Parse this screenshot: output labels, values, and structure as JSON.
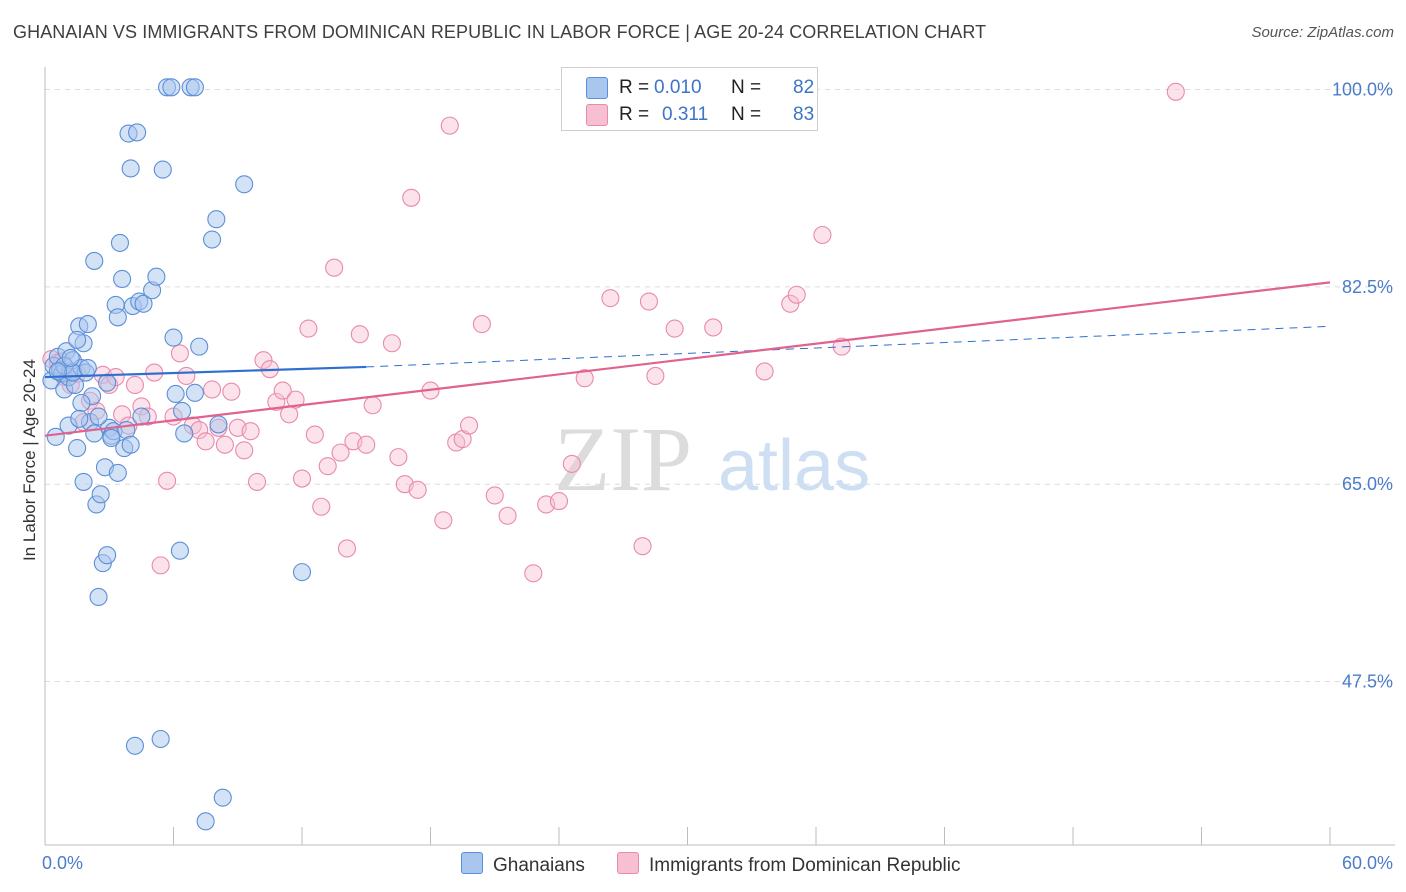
{
  "title": "GHANAIAN VS IMMIGRANTS FROM DOMINICAN REPUBLIC IN LABOR FORCE | AGE 20-24 CORRELATION CHART",
  "source": "Source: ZipAtlas.com",
  "watermark": {
    "zip": "ZIP",
    "atlas": "atlas"
  },
  "legend": {
    "r_label": "R =",
    "n_label": "N =",
    "rows": [
      {
        "r": "0.010",
        "n": "82"
      },
      {
        "r": "0.311",
        "n": "83"
      }
    ]
  },
  "bottom_legend": [
    "Ghanaians",
    "Immigrants from Dominican Republic"
  ],
  "colors": {
    "blue_fill": "#a9c6ee",
    "blue_stroke": "#5b8fd8",
    "blue_line": "#2f6fd0",
    "pink_fill": "#f6bfd2",
    "pink_stroke": "#e98aac",
    "pink_line": "#e0628f",
    "tick": "#4a7cc9",
    "grid": "#dcdcdc"
  },
  "chart_data": {
    "type": "scatter",
    "title": "GHANAIAN VS IMMIGRANTS FROM DOMINICAN REPUBLIC IN LABOR FORCE | AGE 20-24 CORRELATION CHART",
    "xlabel": "",
    "ylabel": "In Labor Force | Age 20-24",
    "xlim": [
      0,
      60
    ],
    "ylim": [
      33,
      102
    ],
    "x_tick_labels": [
      {
        "value": 0,
        "label": "0.0%"
      },
      {
        "value": 60,
        "label": "60.0%"
      }
    ],
    "y_ticks": [
      {
        "value": 100,
        "label": "100.0%"
      },
      {
        "value": 82.5,
        "label": "82.5%"
      },
      {
        "value": 65,
        "label": "65.0%"
      },
      {
        "value": 47.5,
        "label": "47.5%"
      }
    ],
    "series": [
      {
        "name": "Ghanaians",
        "R": 0.01,
        "N": 82,
        "trend": {
          "x": [
            0,
            15
          ],
          "y": [
            74.5,
            75.4
          ],
          "dashed_to": [
            60,
            79.0
          ]
        },
        "points": [
          [
            0.3,
            74.2
          ],
          [
            0.4,
            75.5
          ],
          [
            0.5,
            69.2
          ],
          [
            0.6,
            76.3
          ],
          [
            0.7,
            75.1
          ],
          [
            0.8,
            74.8
          ],
          [
            0.9,
            73.4
          ],
          [
            1.0,
            76.8
          ],
          [
            1.1,
            74.5
          ],
          [
            1.2,
            75.0
          ],
          [
            1.3,
            76.0
          ],
          [
            1.4,
            73.8
          ],
          [
            1.5,
            68.2
          ],
          [
            1.6,
            79.0
          ],
          [
            1.7,
            75.3
          ],
          [
            1.8,
            77.5
          ],
          [
            1.9,
            74.9
          ],
          [
            2.0,
            79.2
          ],
          [
            2.1,
            70.5
          ],
          [
            2.2,
            72.8
          ],
          [
            2.3,
            69.5
          ],
          [
            2.4,
            63.2
          ],
          [
            2.5,
            55.0
          ],
          [
            2.6,
            64.1
          ],
          [
            2.7,
            58.0
          ],
          [
            2.8,
            66.5
          ],
          [
            2.9,
            58.7
          ],
          [
            3.0,
            70.0
          ],
          [
            3.1,
            69.3
          ],
          [
            3.2,
            69.7
          ],
          [
            3.3,
            80.9
          ],
          [
            3.4,
            79.8
          ],
          [
            3.5,
            86.4
          ],
          [
            3.6,
            83.2
          ],
          [
            3.7,
            68.2
          ],
          [
            3.8,
            69.8
          ],
          [
            3.9,
            96.1
          ],
          [
            4.0,
            93.0
          ],
          [
            4.1,
            80.8
          ],
          [
            4.2,
            41.8
          ],
          [
            4.3,
            96.2
          ],
          [
            4.4,
            81.2
          ],
          [
            4.5,
            71.0
          ],
          [
            4.6,
            81.0
          ],
          [
            5.0,
            82.2
          ],
          [
            5.2,
            83.4
          ],
          [
            5.4,
            42.4
          ],
          [
            5.5,
            92.9
          ],
          [
            5.7,
            100.2
          ],
          [
            5.9,
            100.2
          ],
          [
            6.0,
            78.0
          ],
          [
            6.1,
            73.0
          ],
          [
            6.3,
            59.1
          ],
          [
            6.4,
            71.5
          ],
          [
            6.5,
            69.5
          ],
          [
            6.8,
            100.2
          ],
          [
            7.0,
            100.2
          ],
          [
            7.2,
            77.2
          ],
          [
            7.5,
            35.1
          ],
          [
            7.8,
            86.7
          ],
          [
            8.0,
            88.5
          ],
          [
            8.3,
            37.2
          ],
          [
            1.8,
            65.2
          ],
          [
            2.3,
            84.8
          ],
          [
            1.5,
            77.8
          ],
          [
            9.3,
            91.6
          ],
          [
            0.9,
            75.5
          ],
          [
            1.3,
            74.9
          ],
          [
            1.7,
            72.2
          ],
          [
            2.9,
            74.0
          ],
          [
            3.1,
            69.1
          ],
          [
            1.2,
            76.2
          ],
          [
            0.6,
            75.0
          ],
          [
            1.1,
            70.2
          ],
          [
            2.0,
            75.3
          ],
          [
            8.1,
            70.3
          ],
          [
            7.0,
            73.1
          ],
          [
            12.0,
            57.2
          ],
          [
            2.5,
            71.0
          ],
          [
            3.4,
            66.0
          ],
          [
            1.6,
            70.8
          ],
          [
            4.0,
            68.5
          ]
        ]
      },
      {
        "name": "Immigrants from Dominican Republic",
        "R": 0.311,
        "N": 83,
        "trend": {
          "x": [
            0,
            60
          ],
          "y": [
            69.3,
            82.9
          ]
        },
        "points": [
          [
            0.3,
            76.1
          ],
          [
            0.6,
            75.8
          ],
          [
            0.9,
            74.5
          ],
          [
            1.2,
            73.8
          ],
          [
            1.5,
            74.8
          ],
          [
            1.8,
            70.5
          ],
          [
            2.1,
            72.4
          ],
          [
            2.4,
            71.5
          ],
          [
            2.7,
            74.7
          ],
          [
            3.0,
            73.8
          ],
          [
            3.3,
            74.5
          ],
          [
            3.6,
            71.2
          ],
          [
            3.9,
            70.2
          ],
          [
            4.2,
            73.8
          ],
          [
            4.5,
            71.9
          ],
          [
            4.8,
            71.0
          ],
          [
            5.1,
            74.9
          ],
          [
            5.4,
            57.8
          ],
          [
            5.7,
            65.3
          ],
          [
            6.0,
            71.0
          ],
          [
            6.3,
            76.6
          ],
          [
            6.6,
            74.6
          ],
          [
            6.9,
            70.2
          ],
          [
            7.2,
            69.8
          ],
          [
            7.5,
            68.8
          ],
          [
            7.8,
            73.4
          ],
          [
            8.1,
            70.0
          ],
          [
            8.4,
            68.5
          ],
          [
            8.7,
            73.2
          ],
          [
            9.0,
            70.0
          ],
          [
            9.3,
            68.0
          ],
          [
            9.6,
            69.7
          ],
          [
            9.9,
            65.2
          ],
          [
            10.2,
            76.0
          ],
          [
            10.5,
            75.2
          ],
          [
            10.8,
            72.3
          ],
          [
            11.1,
            73.3
          ],
          [
            11.4,
            71.2
          ],
          [
            11.7,
            72.5
          ],
          [
            12.0,
            65.5
          ],
          [
            12.3,
            78.8
          ],
          [
            12.6,
            69.4
          ],
          [
            12.9,
            63.0
          ],
          [
            13.2,
            66.6
          ],
          [
            13.5,
            84.2
          ],
          [
            13.8,
            67.8
          ],
          [
            14.1,
            59.3
          ],
          [
            14.4,
            68.8
          ],
          [
            14.7,
            78.3
          ],
          [
            15.0,
            68.5
          ],
          [
            15.3,
            72.0
          ],
          [
            16.2,
            77.5
          ],
          [
            16.5,
            67.4
          ],
          [
            16.8,
            65.0
          ],
          [
            17.1,
            90.4
          ],
          [
            17.4,
            64.5
          ],
          [
            18.0,
            73.3
          ],
          [
            18.6,
            61.8
          ],
          [
            18.9,
            96.8
          ],
          [
            19.2,
            68.7
          ],
          [
            19.5,
            69.0
          ],
          [
            19.8,
            70.2
          ],
          [
            20.4,
            79.2
          ],
          [
            21.0,
            64.0
          ],
          [
            21.6,
            62.2
          ],
          [
            22.8,
            57.1
          ],
          [
            23.4,
            63.2
          ],
          [
            24.0,
            63.5
          ],
          [
            24.6,
            66.8
          ],
          [
            25.2,
            74.4
          ],
          [
            26.4,
            81.5
          ],
          [
            27.9,
            59.5
          ],
          [
            28.2,
            81.2
          ],
          [
            28.5,
            74.6
          ],
          [
            29.4,
            78.8
          ],
          [
            31.2,
            78.9
          ],
          [
            33.6,
            75.0
          ],
          [
            34.8,
            81.0
          ],
          [
            35.1,
            81.8
          ],
          [
            36.3,
            87.1
          ],
          [
            37.2,
            77.2
          ],
          [
            52.8,
            99.8
          ],
          [
            0.8,
            75.9
          ]
        ]
      }
    ]
  }
}
